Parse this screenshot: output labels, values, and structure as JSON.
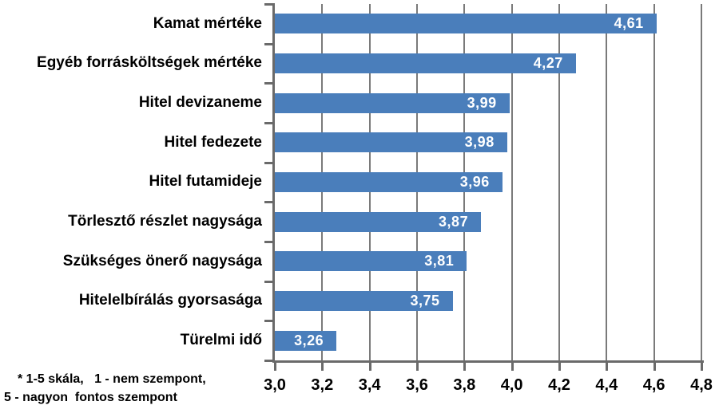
{
  "chart_data": {
    "type": "bar",
    "orientation": "horizontal",
    "title": "",
    "xlabel": "",
    "ylabel": "",
    "categories": [
      "Kamat mértéke",
      "Egyéb forrásköltségek mértéke",
      "Hitel devizaneme",
      "Hitel fedezete",
      "Hitel futamideje",
      "Törlesztő részlet nagysága",
      "Szükséges önerő nagysága",
      "Hitelelbírálás gyorsasága",
      "Türelmi idő"
    ],
    "values": [
      4.61,
      4.27,
      3.99,
      3.98,
      3.96,
      3.87,
      3.81,
      3.75,
      3.26
    ],
    "value_labels": [
      "4,61",
      "4,27",
      "3,99",
      "3,98",
      "3,96",
      "3,87",
      "3,81",
      "3,75",
      "3,26"
    ],
    "xlim": [
      3.0,
      4.8
    ],
    "x_ticks": [
      3.0,
      3.2,
      3.4,
      3.6,
      3.8,
      4.0,
      4.2,
      4.4,
      4.6,
      4.8
    ],
    "x_tick_labels": [
      "3,0",
      "3,2",
      "3,4",
      "3,6",
      "3,8",
      "4,0",
      "4,2",
      "4,4",
      "4,6",
      "4,8"
    ],
    "grid": true,
    "legend": false,
    "bar_color": "#4A7EBB",
    "gridline_color": "#7A7A7A",
    "axis_color": "#6A6A6A",
    "value_label_color": "#FFFFFF",
    "category_label_color": "#000000"
  },
  "footnote": {
    "line1": "* 1-5 skála,   1 - nem szempont,",
    "line2": "5 - nagyon  fontos szempont"
  }
}
